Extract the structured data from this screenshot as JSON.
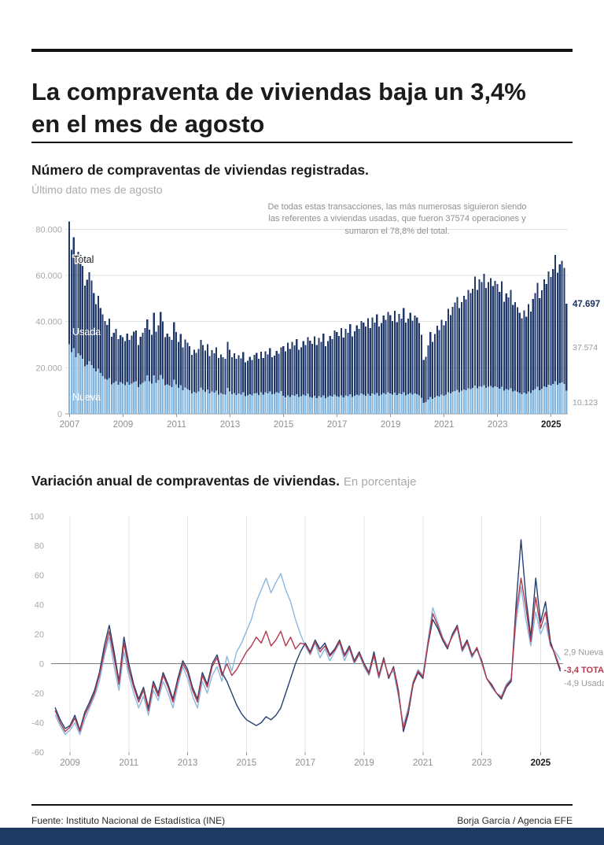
{
  "header": {
    "title": "La compraventa de viviendas baja un 3,4% en el mes de agosto"
  },
  "section1": {
    "title": "Número de compraventas de viviendas registradas.",
    "subtitle": "Último dato mes de agosto"
  },
  "section2": {
    "title": "Variación anual de compraventas de viviendas.",
    "subtitle": "En porcentaje"
  },
  "footer": {
    "source": "Fuente: Instituto Nacional de Estadística (INE)",
    "credit": "Borja García / Agencia EFE"
  },
  "colors": {
    "navy": "#20386a",
    "light_blue": "#85b6de",
    "red": "#b23a4e",
    "grid": "#e0e0e0",
    "axis_text": "#a8a8a8",
    "bottom_bar": "#1e3a63"
  },
  "chart_data": [
    {
      "type": "bar",
      "stacked": true,
      "title": "Número de compraventas de viviendas registradas.",
      "subtitle": "Último dato mes de agosto",
      "annotation": "De todas estas transacciones, las más numerosas siguieron siendo las referentes a viviendas usadas, que fueron 37574 operaciones y sumaron el 78,8% del total.",
      "unit": "thousands_of_operations",
      "x_start_year": 2007,
      "x_interval": "monthly",
      "x_tick_labels": [
        "2007",
        "2009",
        "2011",
        "2013",
        "2015",
        "2017",
        "2019",
        "2021",
        "2023",
        "2025"
      ],
      "ylim": [
        0,
        88
      ],
      "y_tick_values": [
        0,
        20,
        40,
        60,
        80
      ],
      "y_tick_labels": [
        "0",
        "20.000",
        "40.000",
        "60.000",
        "80.000"
      ],
      "area_labels": [
        "Total",
        "Usada",
        "Nueva"
      ],
      "end_labels": [
        "47.697",
        "37.574",
        "10.123"
      ],
      "series": [
        {
          "name": "Total",
          "color": "#20386a",
          "values": [
            83.4,
            71.2,
            76.5,
            65.8,
            70.3,
            68.9,
            64.2,
            55.6,
            58.1,
            61.4,
            57.8,
            52.3,
            47.5,
            51.2,
            45.8,
            43.1,
            40.2,
            38.6,
            41.3,
            33.5,
            35.2,
            36.8,
            32.4,
            34.1,
            33.2,
            31.5,
            34.8,
            32.1,
            33.9,
            35.6,
            36.2,
            29.8,
            33.4,
            35.1,
            37.2,
            41.0,
            36.5,
            34.2,
            43.8,
            35.6,
            38.4,
            44.2,
            40.1,
            33.2,
            34.8,
            33.5,
            32.1,
            39.8,
            35.4,
            31.2,
            34.6,
            28.9,
            32.3,
            30.8,
            29.4,
            25.6,
            27.8,
            26.4,
            28.2,
            32.1,
            29.8,
            27.4,
            30.2,
            25.1,
            27.6,
            26.3,
            28.9,
            24.2,
            25.8,
            24.6,
            23.9,
            31.2,
            27.8,
            24.5,
            26.2,
            23.8,
            25.4,
            24.1,
            26.8,
            22.3,
            23.1,
            24.8,
            23.4,
            25.6,
            26.4,
            23.8,
            26.9,
            24.2,
            27.1,
            25.8,
            28.4,
            24.6,
            25.2,
            27.3,
            26.1,
            28.8,
            29.4,
            27.2,
            30.8,
            28.1,
            31.2,
            29.6,
            32.4,
            27.8,
            28.9,
            31.5,
            29.8,
            33.2,
            31.8,
            30.4,
            33.6,
            29.8,
            32.9,
            31.2,
            34.8,
            29.4,
            31.6,
            33.8,
            32.4,
            36.2,
            35.4,
            33.8,
            37.2,
            33.1,
            36.8,
            35.2,
            38.9,
            33.6,
            35.8,
            38.4,
            36.9,
            40.2,
            39.6,
            37.8,
            41.4,
            37.2,
            41.8,
            39.6,
            43.2,
            37.8,
            39.4,
            42.6,
            40.8,
            44.1,
            42.8,
            40.2,
            44.6,
            39.8,
            43.4,
            41.2,
            45.8,
            39.6,
            41.2,
            43.8,
            40.4,
            42.6,
            41.8,
            39.4,
            34.2,
            23.4,
            24.8,
            29.6,
            35.4,
            31.2,
            34.6,
            38.2,
            36.4,
            40.8,
            38.4,
            40.2,
            45.6,
            42.8,
            46.4,
            48.2,
            50.6,
            45.8,
            48.4,
            51.2,
            49.6,
            53.8,
            52.4,
            54.2,
            59.6,
            53.8,
            58.4,
            57.2,
            60.8,
            54.6,
            57.2,
            58.8,
            55.4,
            57.6,
            56.2,
            52.8,
            57.4,
            48.6,
            52.2,
            50.4,
            53.8,
            47.2,
            48.4,
            46.2,
            43.8,
            41.4,
            44.8,
            42.2,
            47.6,
            44.4,
            49.8,
            52.4,
            56.8,
            50.2,
            53.6,
            58.4,
            56.2,
            61.8,
            59.4,
            62.8,
            68.9,
            61.2,
            64.8,
            66.4,
            63.2,
            47.697
          ]
        },
        {
          "name": "Nueva",
          "color": "#85b6de",
          "values": [
            30.2,
            26.8,
            28.4,
            24.6,
            26.2,
            25.4,
            23.8,
            20.6,
            21.4,
            22.8,
            21.2,
            19.8,
            18.4,
            19.6,
            17.8,
            16.4,
            15.2,
            14.8,
            15.6,
            12.8,
            13.4,
            14.2,
            12.6,
            13.8,
            13.2,
            12.4,
            13.8,
            12.6,
            13.2,
            13.8,
            14.2,
            11.6,
            12.8,
            13.4,
            14.2,
            16.8,
            14.2,
            13.1,
            16.8,
            13.4,
            14.6,
            16.9,
            15.2,
            12.4,
            12.8,
            12.2,
            11.6,
            14.8,
            12.8,
            11.2,
            12.4,
            10.2,
            11.4,
            10.8,
            10.2,
            8.9,
            9.6,
            9.1,
            9.8,
            11.4,
            10.4,
            9.6,
            10.6,
            8.8,
            9.7,
            9.2,
            10.1,
            8.4,
            9.0,
            8.6,
            8.3,
            11.2,
            9.7,
            8.5,
            9.1,
            8.2,
            8.8,
            8.4,
            9.3,
            7.7,
            8.0,
            8.6,
            8.1,
            8.9,
            9.1,
            8.2,
            9.3,
            8.3,
            9.3,
            8.9,
            9.8,
            8.5,
            8.7,
            9.4,
            9.0,
            9.9,
            7.9,
            7.2,
            8.1,
            7.4,
            8.2,
            7.8,
            8.5,
            7.3,
            7.6,
            8.3,
            7.9,
            8.7,
            7.4,
            7.0,
            7.8,
            6.9,
            7.6,
            7.2,
            8.0,
            6.8,
            7.3,
            7.8,
            7.5,
            8.4,
            7.7,
            7.4,
            8.1,
            7.2,
            8.0,
            7.7,
            8.5,
            7.3,
            7.8,
            8.4,
            8.0,
            8.8,
            8.3,
            7.9,
            8.7,
            7.8,
            8.8,
            8.3,
            9.1,
            7.9,
            8.3,
            9.0,
            8.6,
            9.3,
            8.8,
            8.3,
            9.2,
            8.2,
            8.9,
            8.5,
            9.4,
            8.1,
            8.5,
            9.0,
            8.3,
            8.8,
            8.6,
            8.1,
            7.0,
            4.8,
            5.1,
            6.1,
            7.3,
            6.4,
            7.1,
            7.9,
            7.5,
            8.4,
            7.9,
            8.3,
            9.4,
            8.8,
            9.6,
            9.9,
            10.4,
            9.4,
            10.0,
            10.5,
            10.2,
            11.1,
            10.8,
            11.2,
            12.3,
            11.1,
            12.0,
            11.8,
            12.5,
            11.2,
            11.8,
            12.1,
            11.4,
            11.9,
            11.6,
            10.9,
            11.8,
            10.0,
            10.8,
            10.4,
            11.1,
            9.7,
            10.0,
            9.5,
            9.0,
            8.5,
            9.2,
            8.7,
            9.8,
            9.1,
            10.2,
            10.8,
            11.7,
            10.3,
            11.0,
            12.0,
            11.6,
            12.7,
            12.2,
            12.9,
            14.2,
            12.6,
            13.3,
            13.7,
            13.0,
            10.123
          ]
        }
      ]
    },
    {
      "type": "line",
      "title": "Variación anual de compraventas de viviendas.",
      "subtitle": "En porcentaje",
      "x_start": 2008.5,
      "x_step_years": 0.16667,
      "x_tick_labels": [
        "2009",
        "2011",
        "2013",
        "2015",
        "2017",
        "2019",
        "2021",
        "2023",
        "2025"
      ],
      "ylim": [
        -60,
        100
      ],
      "y_tick_values": [
        100,
        80,
        60,
        40,
        20,
        0,
        -20,
        -40,
        -60
      ],
      "end_labels": [
        {
          "text": "2,9 Nueva",
          "color": "#9a9a9a",
          "bold": false,
          "anchor_value": 8
        },
        {
          "text": "-3,4 TOTAL",
          "color": "#b23a4e",
          "bold": true,
          "anchor_value": -4
        },
        {
          "text": "-4,9 Usada",
          "color": "#9a9a9a",
          "bold": false,
          "anchor_value": -13
        }
      ],
      "series": [
        {
          "name": "Nueva",
          "color": "#8ab8e0",
          "last_value": 2.9,
          "values": [
            -35,
            -42,
            -48,
            -45,
            -40,
            -48,
            -38,
            -30,
            -22,
            -12,
            5,
            18,
            -2,
            -18,
            8,
            -8,
            -20,
            -30,
            -22,
            -35,
            -18,
            -25,
            -12,
            -20,
            -30,
            -15,
            -2,
            -10,
            -22,
            -30,
            -12,
            -20,
            -8,
            -2,
            -12,
            5,
            -5,
            8,
            14,
            22,
            30,
            42,
            50,
            58,
            48,
            55,
            61,
            50,
            42,
            30,
            20,
            12,
            6,
            14,
            4,
            10,
            2,
            8,
            14,
            2,
            10,
            0,
            6,
            -2,
            -8,
            5,
            -10,
            2,
            -8,
            -5,
            -22,
            -42,
            -30,
            -12,
            -4,
            -8,
            15,
            38,
            28,
            18,
            12,
            18,
            24,
            8,
            14,
            4,
            10,
            0,
            -10,
            -16,
            -20,
            -22,
            -14,
            -10,
            28,
            52,
            30,
            12,
            35,
            20,
            28,
            12,
            8,
            2.9
          ]
        },
        {
          "name": "Usada",
          "color": "#24406e",
          "last_value": -4.9,
          "values": [
            -30,
            -38,
            -44,
            -42,
            -35,
            -45,
            -33,
            -26,
            -18,
            -6,
            12,
            26,
            8,
            -12,
            18,
            0,
            -14,
            -24,
            -16,
            -30,
            -12,
            -20,
            -6,
            -14,
            -24,
            -10,
            2,
            -4,
            -16,
            -24,
            -6,
            -14,
            0,
            6,
            -6,
            -12,
            -20,
            -28,
            -34,
            -38,
            -40,
            -42,
            -40,
            -36,
            -38,
            -35,
            -30,
            -20,
            -10,
            0,
            8,
            14,
            8,
            16,
            10,
            14,
            6,
            10,
            16,
            6,
            12,
            2,
            8,
            0,
            -6,
            8,
            -8,
            4,
            -10,
            -2,
            -18,
            -46,
            -34,
            -14,
            -6,
            -10,
            12,
            30,
            24,
            16,
            10,
            20,
            26,
            10,
            16,
            6,
            10,
            2,
            -10,
            -14,
            -20,
            -24,
            -16,
            -12,
            40,
            84,
            45,
            18,
            58,
            28,
            42,
            15,
            5,
            -4.9
          ]
        },
        {
          "name": "TOTAL",
          "color": "#b23a4e",
          "last_value": -3.4,
          "values": [
            -32,
            -40,
            -46,
            -43,
            -37,
            -46,
            -35,
            -28,
            -20,
            -8,
            8,
            22,
            4,
            -14,
            14,
            -4,
            -16,
            -26,
            -18,
            -32,
            -14,
            -22,
            -8,
            -16,
            -26,
            -12,
            0,
            -6,
            -18,
            -26,
            -8,
            -16,
            -2,
            4,
            -8,
            0,
            -8,
            -4,
            2,
            8,
            12,
            18,
            14,
            22,
            12,
            16,
            22,
            12,
            18,
            10,
            14,
            13,
            7,
            15,
            8,
            12,
            5,
            9,
            15,
            5,
            11,
            1,
            7,
            -1,
            -7,
            6,
            -9,
            3,
            -9,
            -3,
            -20,
            -44,
            -32,
            -13,
            -5,
            -9,
            13,
            34,
            26,
            17,
            11,
            19,
            25,
            9,
            15,
            5,
            11,
            1,
            -10,
            -15,
            -20,
            -23,
            -15,
            -11,
            34,
            58,
            38,
            15,
            45,
            24,
            35,
            13,
            6,
            -3.4
          ]
        }
      ]
    }
  ]
}
